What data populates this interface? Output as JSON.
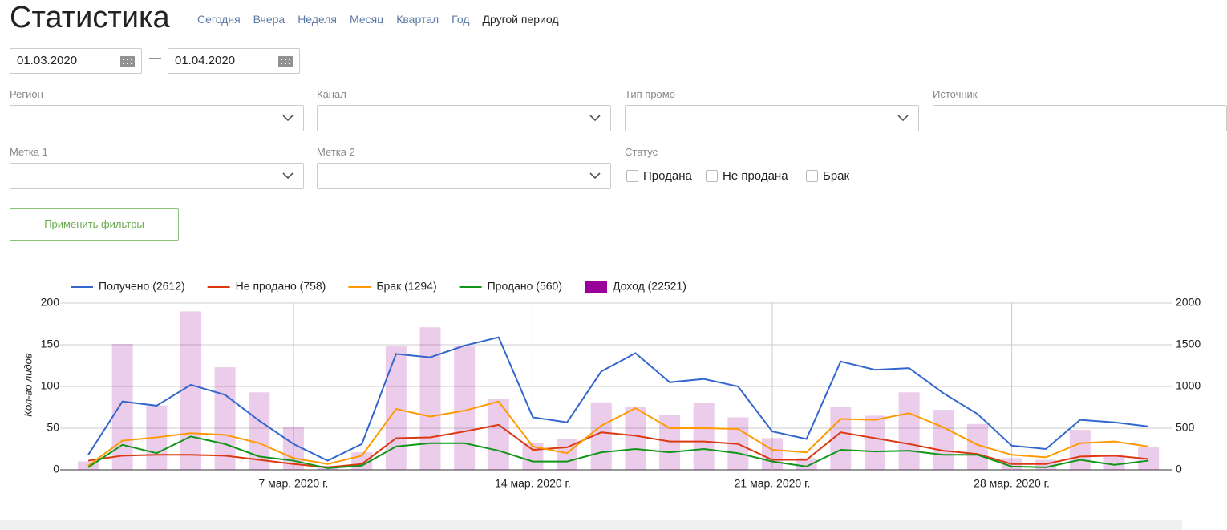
{
  "header": {
    "title": "Статистика",
    "periods": [
      "Сегодня",
      "Вчера",
      "Неделя",
      "Месяц",
      "Квартал",
      "Год",
      "Другой период"
    ]
  },
  "date_range": {
    "from": "01.03.2020",
    "separator": "—",
    "to": "01.04.2020"
  },
  "filters": {
    "fields": [
      "Регион",
      "Канал",
      "Тип промо",
      "Источник",
      "Метка 1",
      "Метка 2"
    ],
    "status": {
      "label": "Статус",
      "options": [
        "Продана",
        "Не продана",
        "Брак"
      ]
    },
    "apply": "Применить фильтры"
  },
  "chart_data": {
    "type": "combo",
    "y_label": "Кол-во лидов",
    "categories": [
      null,
      null,
      null,
      null,
      null,
      null,
      "7 мар. 2020 г.",
      null,
      null,
      null,
      null,
      null,
      null,
      "14 мар. 2020 г.",
      null,
      null,
      null,
      null,
      null,
      null,
      "21 мар. 2020 г.",
      null,
      null,
      null,
      null,
      null,
      null,
      "28 мар. 2020 г.",
      null,
      null,
      null,
      null
    ],
    "ylim": [
      0,
      200
    ],
    "yticks": [
      0,
      50,
      100,
      150,
      200
    ],
    "y2lim": [
      0,
      2000
    ],
    "y2ticks": [
      0,
      500,
      1000,
      1500,
      2000
    ],
    "grid": true,
    "legend": "top",
    "series": [
      {
        "name": "Доход (22521)",
        "kind": "bar",
        "axis": "y2",
        "color": "#990099",
        "values": [
          100,
          1510,
          770,
          1900,
          1230,
          930,
          510,
          50,
          210,
          1480,
          1710,
          1480,
          850,
          320,
          370,
          810,
          760,
          660,
          800,
          630,
          380,
          140,
          750,
          650,
          930,
          720,
          550,
          140,
          120,
          480,
          170,
          270
        ]
      },
      {
        "name": "Получено (2612)",
        "kind": "line",
        "color": "#3366cc",
        "values": [
          18,
          82,
          77,
          102,
          90,
          59,
          31,
          11,
          31,
          139,
          135,
          149,
          159,
          63,
          57,
          118,
          140,
          105,
          109,
          100,
          46,
          37,
          130,
          120,
          122,
          92,
          67,
          29,
          25,
          60,
          57,
          52
        ]
      },
      {
        "name": "Не продано (758)",
        "kind": "line",
        "color": "#dc3912",
        "values": [
          11,
          17,
          18,
          18,
          17,
          12,
          7,
          3,
          7,
          38,
          39,
          46,
          54,
          24,
          27,
          45,
          41,
          34,
          34,
          31,
          12,
          12,
          45,
          38,
          31,
          23,
          19,
          7,
          7,
          16,
          17,
          13
        ]
      },
      {
        "name": "Брак (1294)",
        "kind": "line",
        "color": "#ff9900",
        "values": [
          5,
          35,
          39,
          44,
          42,
          32,
          14,
          7,
          17,
          73,
          64,
          71,
          82,
          28,
          20,
          53,
          74,
          50,
          50,
          49,
          24,
          21,
          61,
          60,
          68,
          51,
          30,
          18,
          15,
          32,
          34,
          28
        ]
      },
      {
        "name": "Продано (560)",
        "kind": "line",
        "color": "#109618",
        "values": [
          3,
          30,
          20,
          40,
          31,
          16,
          11,
          2,
          5,
          28,
          32,
          32,
          23,
          10,
          10,
          21,
          25,
          21,
          25,
          20,
          10,
          4,
          24,
          22,
          23,
          18,
          18,
          4,
          3,
          12,
          6,
          11
        ]
      }
    ]
  }
}
